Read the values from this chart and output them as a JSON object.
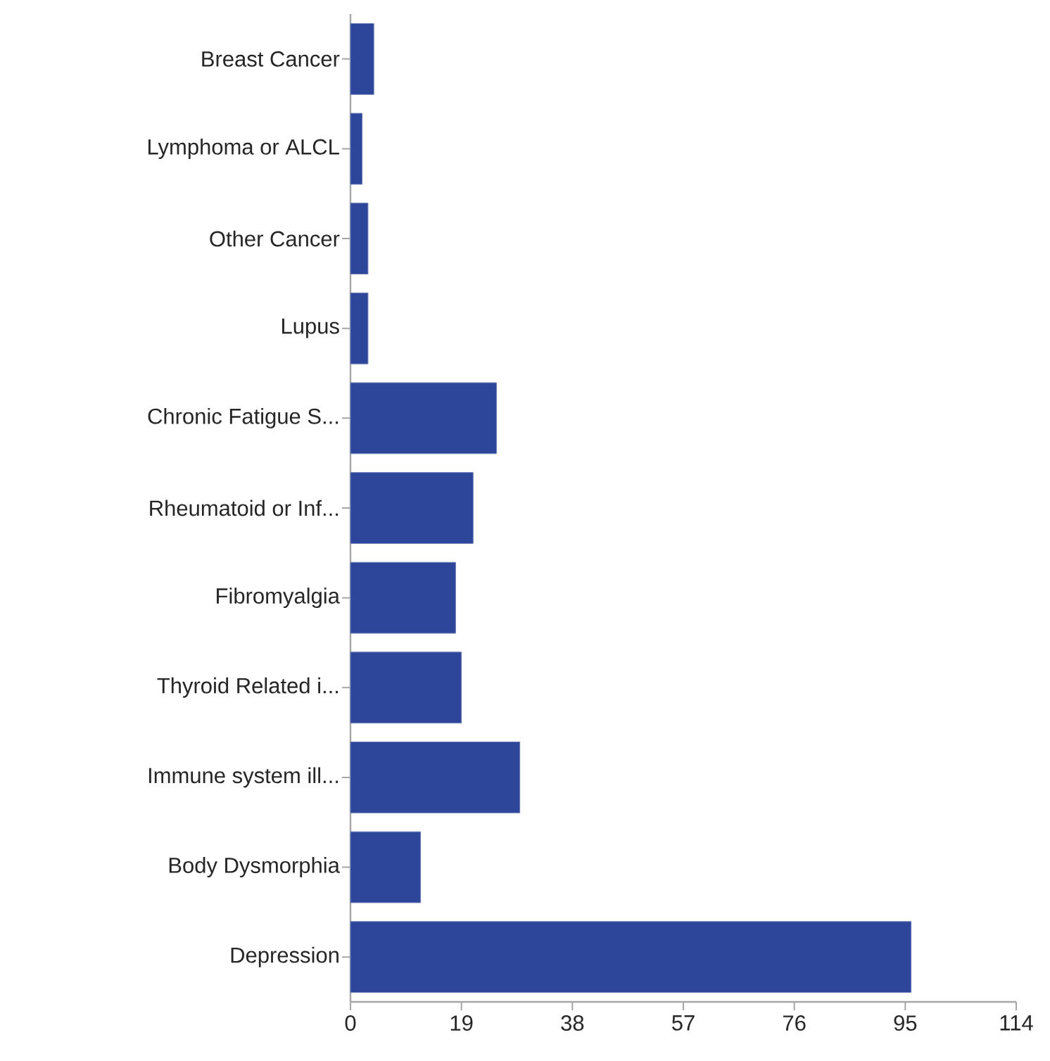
{
  "chart_data": {
    "type": "bar",
    "orientation": "horizontal",
    "categories": [
      "Breast Cancer",
      "Lymphoma or ALCL",
      "Other Cancer",
      "Lupus",
      "Chronic Fatigue S...",
      "Rheumatoid or Inf...",
      "Fibromyalgia",
      "Thyroid Related i...",
      "Immune system ill...",
      "Body Dysmorphia",
      "Depression"
    ],
    "values": [
      4,
      2,
      3,
      3,
      25,
      21,
      18,
      19,
      29,
      12,
      96
    ],
    "color": "#2e4699",
    "xlim": [
      0,
      114
    ],
    "xticks": [
      0,
      19,
      38,
      57,
      76,
      95,
      114
    ],
    "grid": false
  }
}
